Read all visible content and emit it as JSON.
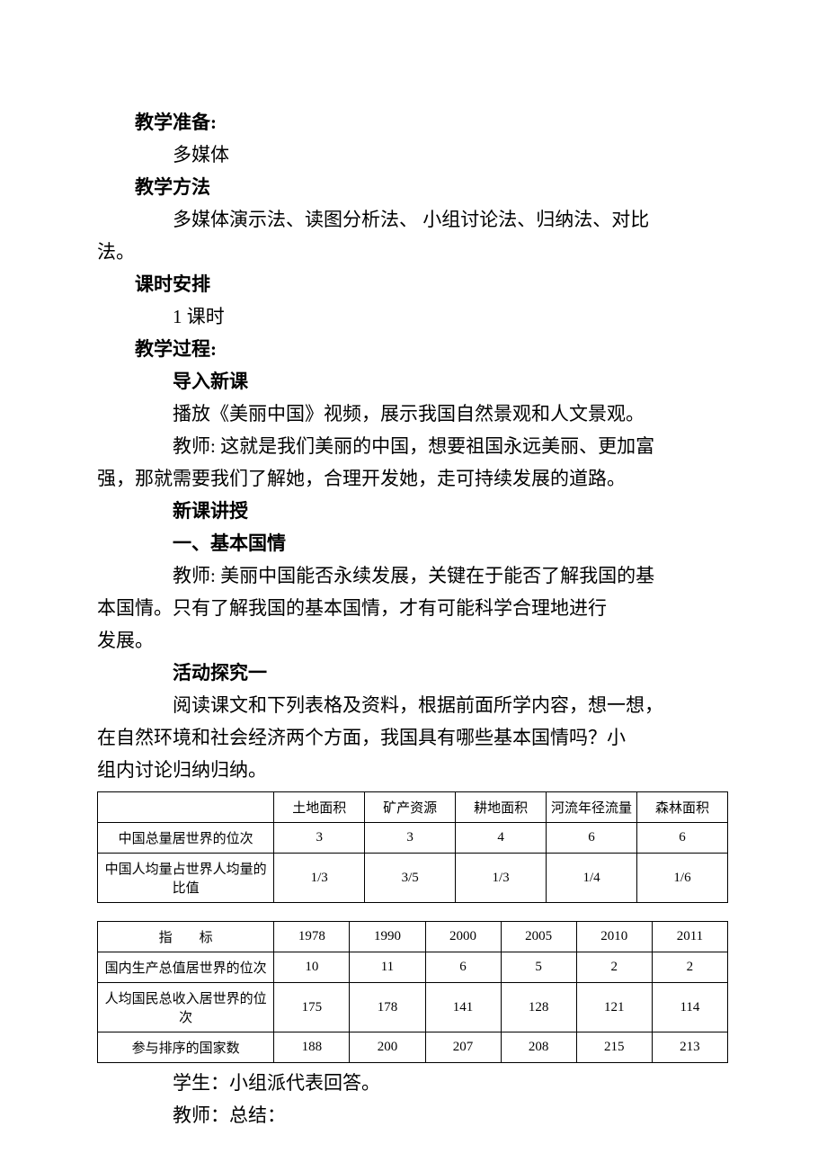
{
  "sections": {
    "prep_label": "教学准备:",
    "prep_body": "多媒体",
    "method_label": "教学方法",
    "method_body_l1": "多媒体演示法、读图分析法、 小组讨论法、归纳法、对比",
    "method_body_l2": "法。",
    "schedule_label": "课时安排",
    "schedule_body": "1 课时",
    "process_label": "教学过程:",
    "intro_head": "导入新课",
    "intro_l1": "播放《美丽中国》视频，展示我国自然景观和人文景观。",
    "intro_l2a": "教师: 这就是我们美丽的中国，想要祖国永远美丽、更加富",
    "intro_l2b": "强，那就需要我们了解她，合理开发她，走可持续发展的道路。",
    "lecture_head": "新课讲授",
    "part1_head": "一、基本国情",
    "part1_l1a": "教师: 美丽中国能否永续发展，关键在于能否了解我国的基",
    "part1_l1b": "本国情。只有了解我国的基本国情，才有可能科学合理地进行",
    "part1_l1c": "发展。",
    "activity_head": "活动探究一",
    "activity_l1a": "阅读课文和下列表格及资料，根据前面所学内容，想一想，",
    "activity_l1b": "在自然环境和社会经济两个方面，我国具有哪些基本国情吗？小",
    "activity_l1c": "组内讨论归纳归纳。",
    "after_l1": "学生：小组派代表回答。",
    "after_l2": "教师：总结："
  },
  "table1": {
    "col_widths": [
      "28%",
      "14.4%",
      "14.4%",
      "14.4%",
      "14.4%",
      "14.4%"
    ],
    "header": [
      "",
      "土地面积",
      "矿产资源",
      "耕地面积",
      "河流年径流量",
      "森林面积"
    ],
    "rows": [
      [
        "中国总量居世界的位次",
        "3",
        "3",
        "4",
        "6",
        "6"
      ],
      [
        "中国人均量占世界人均量的比值",
        "1/3",
        "3/5",
        "1/3",
        "1/4",
        "1/6"
      ]
    ]
  },
  "table2": {
    "col_widths": [
      "28%",
      "12%",
      "12%",
      "12%",
      "12%",
      "12%",
      "12%"
    ],
    "header": [
      "指　　标",
      "1978",
      "1990",
      "2000",
      "2005",
      "2010",
      "2011"
    ],
    "rows": [
      [
        "国内生产总值居世界的位次",
        "10",
        "11",
        "6",
        "5",
        "2",
        "2"
      ],
      [
        "人均国民总收入居世界的位次",
        "175",
        "178",
        "141",
        "128",
        "121",
        "114"
      ],
      [
        "参与排序的国家数",
        "188",
        "200",
        "207",
        "208",
        "215",
        "213"
      ]
    ]
  }
}
